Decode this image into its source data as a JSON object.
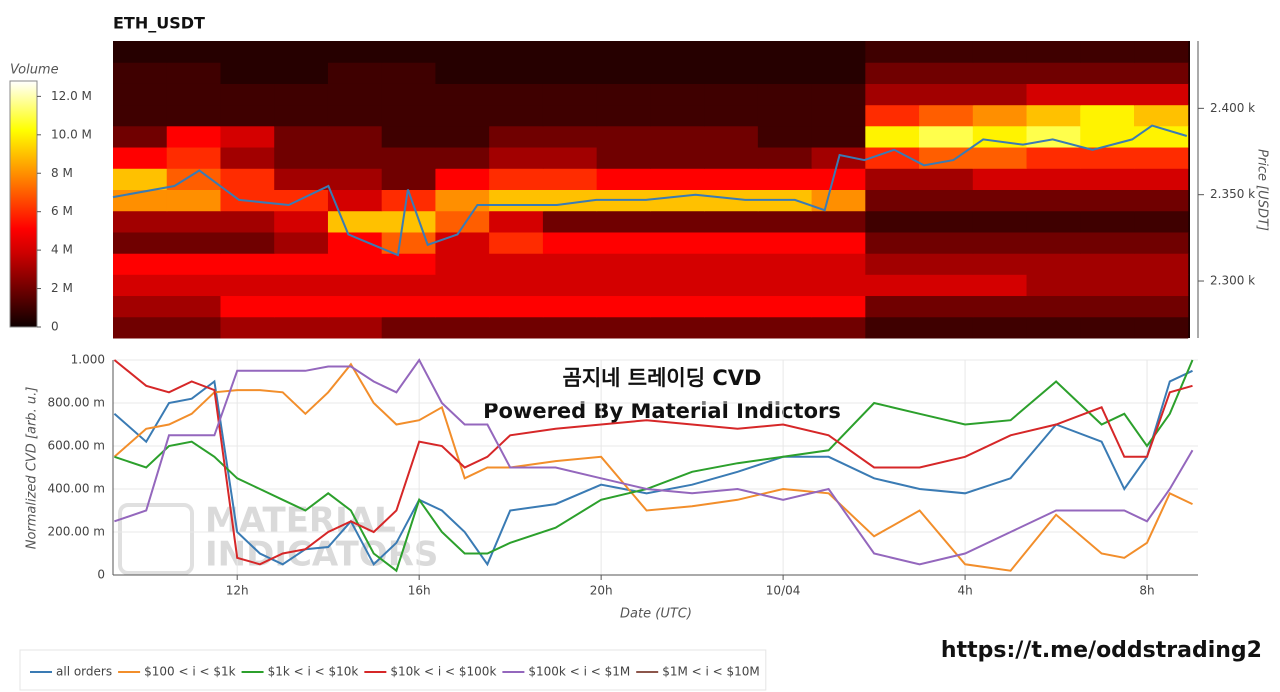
{
  "chart_data": [
    {
      "type": "heatmap",
      "title": "ETH_USDT",
      "colorbar_label": "Volume",
      "ylabel": "Price [USDT]",
      "xlim": [
        9.27,
        33.12
      ],
      "ylim": [
        2267,
        2439
      ],
      "yticks": [
        {
          "value": 2300,
          "label": "2.300 k"
        },
        {
          "value": 2350,
          "label": "2.350 k"
        },
        {
          "value": 2400,
          "label": "2.400 k"
        }
      ],
      "colorbar_lim": [
        0,
        12.8
      ],
      "colorbar_ticks": [
        {
          "value": 0,
          "label": "0"
        },
        {
          "value": 2,
          "label": "2 M"
        },
        {
          "value": 4,
          "label": "4 M"
        },
        {
          "value": 6,
          "label": "6 M"
        },
        {
          "value": 8,
          "label": "8 M"
        },
        {
          "value": 10,
          "label": "10.0 M"
        },
        {
          "value": 12,
          "label": "12.0 M"
        }
      ],
      "x_edges": [
        9.27,
        10.46,
        11.65,
        12.84,
        14.03,
        15.22,
        16.41,
        17.6,
        18.79,
        19.98,
        21.17,
        22.36,
        23.55,
        24.74,
        25.93,
        27.12,
        28.31,
        29.5,
        30.69,
        31.88,
        33.07
      ],
      "y_edges": [
        2267,
        2279.3,
        2291.6,
        2303.9,
        2316.1,
        2328.4,
        2340.7,
        2353,
        2365.3,
        2377.6,
        2389.9,
        2402.1,
        2414.4,
        2426.7,
        2439
      ],
      "z": [
        [
          2,
          2,
          3,
          3,
          3,
          2,
          2,
          2,
          2,
          2,
          2,
          2,
          2,
          2,
          1,
          1,
          1,
          1,
          1,
          1
        ],
        [
          3,
          3,
          5,
          5,
          5,
          5,
          5,
          5,
          5,
          5,
          5,
          5,
          5,
          5,
          2,
          2,
          2,
          2,
          2,
          2
        ],
        [
          4,
          4,
          4,
          4,
          4,
          4,
          4,
          4,
          4,
          4,
          4,
          4,
          4,
          4,
          4,
          4,
          4,
          3,
          3,
          3
        ],
        [
          5,
          5,
          5,
          5,
          5,
          5,
          4,
          4,
          4,
          4,
          4,
          4,
          4,
          4,
          3,
          3,
          3,
          3,
          3,
          3
        ],
        [
          2,
          2,
          2,
          3,
          5,
          7,
          4,
          6,
          5,
          5,
          5,
          5,
          5,
          5,
          2,
          2,
          2,
          2,
          2,
          2
        ],
        [
          3,
          3,
          3,
          4,
          9,
          9,
          7,
          4,
          2,
          2,
          2,
          2,
          2,
          2,
          1,
          1,
          1,
          1,
          1,
          1
        ],
        [
          8,
          8,
          6,
          6,
          4,
          6,
          8,
          9,
          9,
          9,
          9,
          9,
          9,
          8,
          2,
          2,
          2,
          2,
          2,
          2
        ],
        [
          9,
          7,
          6,
          3,
          3,
          2,
          5,
          6,
          6,
          5,
          5,
          5,
          5,
          5,
          3,
          3,
          4,
          4,
          4,
          4
        ],
        [
          5,
          6,
          3,
          2,
          2,
          2,
          2,
          3,
          3,
          2,
          2,
          2,
          2,
          3,
          6,
          7,
          7,
          6,
          6,
          6
        ],
        [
          2,
          5,
          4,
          2,
          2,
          1,
          1,
          2,
          2,
          2,
          2,
          2,
          1,
          1,
          10,
          11,
          10,
          11,
          10,
          10
        ],
        [
          1,
          1,
          1,
          1,
          1,
          1,
          1,
          1,
          1,
          1,
          1,
          1,
          1,
          1,
          6,
          7,
          8,
          9,
          10,
          9
        ],
        [
          1,
          1,
          1,
          1,
          1,
          1,
          1,
          1,
          1,
          1,
          1,
          1,
          1,
          1,
          3,
          3,
          3,
          4,
          4,
          4
        ],
        [
          1,
          1,
          0.5,
          0.5,
          1,
          1,
          0.5,
          0.5,
          0.5,
          0.5,
          0.5,
          0.5,
          0.5,
          0.5,
          2,
          2,
          2,
          2,
          2,
          2
        ],
        [
          0.5,
          0.5,
          0.5,
          0.5,
          0.5,
          0.5,
          0.5,
          0.5,
          0.5,
          0.5,
          0.5,
          0.5,
          0.5,
          0.5,
          1,
          1,
          1,
          1,
          1,
          1
        ]
      ],
      "price": {
        "color": "#3a7bb4",
        "x": [
          9.27,
          10.63,
          11.18,
          12.06,
          13.16,
          14.04,
          14.48,
          15.03,
          15.58,
          15.8,
          16.24,
          16.9,
          17.34,
          18.22,
          19.1,
          19.97,
          21.07,
          22.17,
          23.27,
          24.37,
          25.03,
          25.36,
          25.91,
          26.57,
          27.23,
          27.88,
          28.54,
          29.42,
          30.08,
          30.96,
          31.84,
          32.28,
          33.05
        ],
        "values": [
          2348.6,
          2355,
          2364,
          2347,
          2344,
          2355,
          2327,
          2321,
          2315,
          2353,
          2321,
          2327,
          2344,
          2344,
          2344,
          2347,
          2347,
          2350,
          2347,
          2347,
          2341,
          2373,
          2370,
          2376,
          2367,
          2370,
          2382,
          2379,
          2382,
          2376,
          2382,
          2390,
          2384
        ]
      }
    },
    {
      "type": "line",
      "xlabel": "Date (UTC)",
      "ylabel": "Normalized CVD [arb. u.]",
      "annotations": [
        "곰지네 트레이딩 CVD",
        "Powered By Material Indictors"
      ],
      "xlim": [
        9.27,
        33.12
      ],
      "xticks": [
        {
          "value": 12,
          "label": "12h"
        },
        {
          "value": 16,
          "label": "16h"
        },
        {
          "value": 20,
          "label": "20h"
        },
        {
          "value": 24,
          "label": "10/04"
        },
        {
          "value": 28,
          "label": "4h"
        },
        {
          "value": 32,
          "label": "8h"
        }
      ],
      "ylim": [
        0,
        1
      ],
      "yticks": [
        {
          "value": 0,
          "label": "0"
        },
        {
          "value": 0.2,
          "label": "200.00 m"
        },
        {
          "value": 0.4,
          "label": "400.00 m"
        },
        {
          "value": 0.6,
          "label": "600.00 m"
        },
        {
          "value": 0.8,
          "label": "800.00 m"
        },
        {
          "value": 1,
          "label": "1.000"
        }
      ],
      "grid": true,
      "legend": "bottom-left",
      "x": [
        9.3,
        10,
        10.5,
        11,
        11.5,
        12,
        12.5,
        13,
        13.5,
        14,
        14.5,
        15,
        15.5,
        16,
        16.5,
        17,
        17.5,
        18,
        19,
        20,
        21,
        22,
        23,
        24,
        25,
        26,
        27,
        28,
        29,
        30,
        31,
        31.5,
        32,
        32.5,
        33
      ],
      "series": [
        {
          "name": "all orders",
          "color": "#3a7bb4",
          "values": [
            0.75,
            0.62,
            0.8,
            0.82,
            0.9,
            0.2,
            0.1,
            0.05,
            0.12,
            0.13,
            0.25,
            0.05,
            0.15,
            0.35,
            0.3,
            0.2,
            0.05,
            0.3,
            0.33,
            0.42,
            0.38,
            0.42,
            0.48,
            0.55,
            0.55,
            0.45,
            0.4,
            0.38,
            0.45,
            0.7,
            0.62,
            0.4,
            0.55,
            0.9,
            0.95
          ]
        },
        {
          "name": "$100 < i < $1k",
          "color": "#f28e2b",
          "values": [
            0.55,
            0.68,
            0.7,
            0.75,
            0.85,
            0.86,
            0.86,
            0.85,
            0.75,
            0.85,
            0.98,
            0.8,
            0.7,
            0.72,
            0.78,
            0.45,
            0.5,
            0.5,
            0.53,
            0.55,
            0.3,
            0.32,
            0.35,
            0.4,
            0.38,
            0.18,
            0.3,
            0.05,
            0.02,
            0.28,
            0.1,
            0.08,
            0.15,
            0.38,
            0.33
          ]
        },
        {
          "name": "$1k < i < $10k",
          "color": "#2ca02c",
          "values": [
            0.55,
            0.5,
            0.6,
            0.62,
            0.55,
            0.45,
            0.4,
            0.35,
            0.3,
            0.38,
            0.3,
            0.1,
            0.02,
            0.35,
            0.2,
            0.1,
            0.1,
            0.15,
            0.22,
            0.35,
            0.4,
            0.48,
            0.52,
            0.55,
            0.58,
            0.8,
            0.75,
            0.7,
            0.72,
            0.9,
            0.7,
            0.75,
            0.6,
            0.75,
            1.0
          ]
        },
        {
          "name": "$10k < i < $100k",
          "color": "#d62728",
          "values": [
            1.0,
            0.88,
            0.85,
            0.9,
            0.86,
            0.08,
            0.05,
            0.1,
            0.12,
            0.2,
            0.25,
            0.2,
            0.3,
            0.62,
            0.6,
            0.5,
            0.55,
            0.65,
            0.68,
            0.7,
            0.72,
            0.7,
            0.68,
            0.7,
            0.65,
            0.5,
            0.5,
            0.55,
            0.65,
            0.7,
            0.78,
            0.55,
            0.55,
            0.85,
            0.88
          ]
        },
        {
          "name": "$100k < i < $1M",
          "color": "#9467bd",
          "values": [
            0.25,
            0.3,
            0.65,
            0.65,
            0.65,
            0.95,
            0.95,
            0.95,
            0.95,
            0.97,
            0.97,
            0.9,
            0.85,
            1.0,
            0.8,
            0.7,
            0.7,
            0.5,
            0.5,
            0.45,
            0.4,
            0.38,
            0.4,
            0.35,
            0.4,
            0.1,
            0.05,
            0.1,
            0.2,
            0.3,
            0.3,
            0.3,
            0.25,
            0.4,
            0.58
          ]
        },
        {
          "name": "$1M < i < $10M",
          "color": "#8c564b"
        }
      ]
    }
  ],
  "watermark": [
    "MATERIAL",
    "INDICATORS"
  ],
  "link": "https://t.me/oddstrading2"
}
